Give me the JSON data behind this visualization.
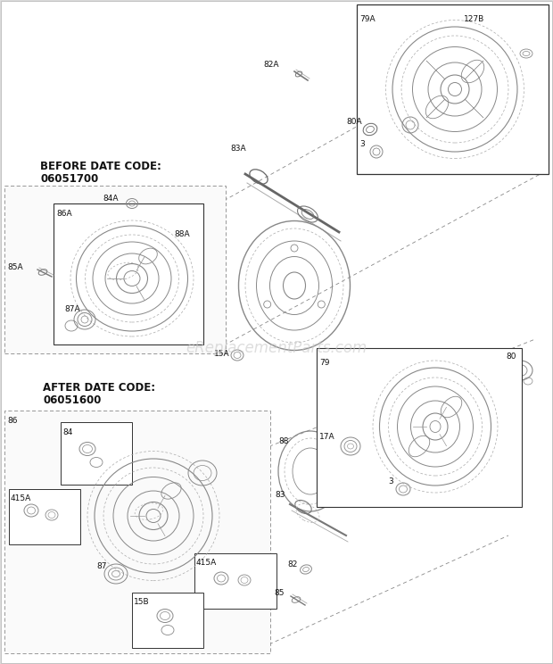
{
  "bg_color": "#ffffff",
  "line_color": "#555555",
  "dark_line": "#333333",
  "light_line": "#888888",
  "dash_color": "#888888",
  "label_color": "#111111",
  "watermark": "eReplacementParts.com",
  "watermark_color": "#c8c8c8",
  "section1_line1": "BEFORE DATE CODE:",
  "section1_line2": "06051700",
  "section2_line1": "AFTER DATE CODE:",
  "section2_line2": "06051600",
  "figsize": [
    6.2,
    7.44
  ],
  "dpi": 100
}
